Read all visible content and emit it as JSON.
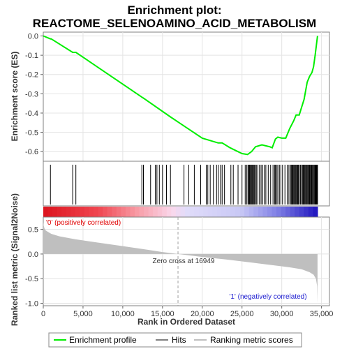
{
  "title_line1": "Enrichment plot:",
  "title_line2": "REACTOME_SELENOAMINO_ACID_METABOLISM",
  "es_ylabel": "Enrichment score (ES)",
  "rank_ylabel": "Ranked list metric (Signal2Noise)",
  "xlabel": "Rank in Ordered Dataset",
  "pos_label": "'0' (positively correlated)",
  "neg_label": "'1' (negatively correlated)",
  "zero_cross_label": "Zero cross at 16949",
  "legend": {
    "profile": "Enrichment profile",
    "hits": "Hits",
    "metric": "Ranking metric scores"
  },
  "colors": {
    "profile": "#00ee00",
    "hits": "#000000",
    "metric": "#bfbfbf",
    "pos_text": "#e00000",
    "neg_text": "#2020d0"
  },
  "chart_data": [
    {
      "type": "line",
      "name": "enrichment",
      "title": "Enrichment plot: REACTOME_SELENOAMINO_ACID_METABOLISM",
      "xlabel": "",
      "ylabel": "Enrichment score (ES)",
      "xlim": [
        0,
        36000
      ],
      "ylim": [
        -0.65,
        0.02
      ],
      "yticks": [
        0.0,
        -0.1,
        -0.2,
        -0.3,
        -0.4,
        -0.5,
        -0.6
      ],
      "ytick_labels": [
        "0.0",
        "-0.1",
        "-0.2",
        "-0.3",
        "-0.4",
        "-0.5",
        "-0.6"
      ],
      "grid": true,
      "x": [
        0,
        900,
        1000,
        3700,
        4100,
        12500,
        12700,
        16000,
        20000,
        22000,
        22500,
        23500,
        25000,
        25700,
        26200,
        26700,
        27500,
        28500,
        28800,
        29200,
        29500,
        30000,
        30500,
        31000,
        31500,
        31800,
        32200,
        32500,
        32800,
        33200,
        33500,
        33800,
        34000,
        34200,
        34350,
        34500
      ],
      "y": [
        0.0,
        -0.015,
        -0.015,
        -0.085,
        -0.085,
        -0.32,
        -0.325,
        -0.42,
        -0.53,
        -0.555,
        -0.555,
        -0.58,
        -0.61,
        -0.615,
        -0.6,
        -0.575,
        -0.565,
        -0.575,
        -0.58,
        -0.535,
        -0.525,
        -0.53,
        -0.53,
        -0.48,
        -0.44,
        -0.41,
        -0.41,
        -0.37,
        -0.33,
        -0.24,
        -0.21,
        -0.19,
        -0.16,
        -0.1,
        -0.05,
        0.0
      ],
      "series": [
        {
          "name": "Enrichment profile"
        }
      ]
    },
    {
      "type": "hits",
      "name": "hits",
      "xlim": [
        0,
        36000
      ],
      "positions": [
        900,
        3700,
        4100,
        12400,
        12600,
        13500,
        14100,
        14300,
        14600,
        15000,
        15500,
        16000,
        17700,
        18300,
        19000,
        19800,
        20500,
        20700,
        21000,
        21400,
        21800,
        22000,
        22300,
        22500,
        22800,
        23600,
        23900,
        24500,
        25000,
        25400,
        25600,
        25750,
        25850,
        25950,
        26050,
        26150,
        26250,
        26350,
        26450,
        26550,
        26700,
        26800,
        27000,
        27200,
        27400,
        27600,
        27800,
        28000,
        28300,
        28600,
        28900,
        29100,
        29200,
        29350,
        29500,
        29700,
        29900,
        30100,
        30400,
        30700,
        30900,
        31100,
        31200,
        31300,
        31400,
        31500,
        31600,
        31700,
        31800,
        31900,
        32000,
        32100,
        32200,
        32350,
        32500,
        32600,
        32700,
        32800,
        32900,
        33000,
        33100,
        33200,
        33300,
        33400,
        33500,
        33600,
        33700,
        33750,
        33800,
        33900,
        34000,
        34100,
        34200,
        34250,
        34300,
        34350,
        34400,
        34450,
        34500
      ]
    },
    {
      "type": "area",
      "name": "ranking_metric",
      "xlabel": "Rank in Ordered Dataset",
      "ylabel": "Ranked list metric (Signal2Noise)",
      "xlim": [
        0,
        36000
      ],
      "ylim": [
        -1.05,
        0.75
      ],
      "xticks": [
        0,
        5000,
        10000,
        15000,
        20000,
        25000,
        30000,
        35000
      ],
      "xtick_labels": [
        "0",
        "5,000",
        "10,000",
        "15,000",
        "20,000",
        "25,000",
        "30,000",
        "35,000"
      ],
      "yticks": [
        0.5,
        0.0,
        -0.5,
        -1.0
      ],
      "ytick_labels": [
        "0.5",
        "0.0",
        "-0.5",
        "-1.0"
      ],
      "zero_cross": 16949,
      "x": [
        0,
        50,
        150,
        300,
        600,
        1000,
        2000,
        4000,
        7000,
        10000,
        13000,
        15000,
        16949,
        20000,
        23000,
        26000,
        29000,
        31000,
        32500,
        33500,
        34000,
        34300,
        34450,
        34500
      ],
      "y": [
        0.65,
        0.58,
        0.52,
        0.48,
        0.45,
        0.41,
        0.36,
        0.3,
        0.23,
        0.16,
        0.09,
        0.04,
        0.0,
        -0.06,
        -0.11,
        -0.17,
        -0.23,
        -0.27,
        -0.31,
        -0.37,
        -0.42,
        -0.5,
        -0.65,
        -1.0
      ]
    }
  ]
}
